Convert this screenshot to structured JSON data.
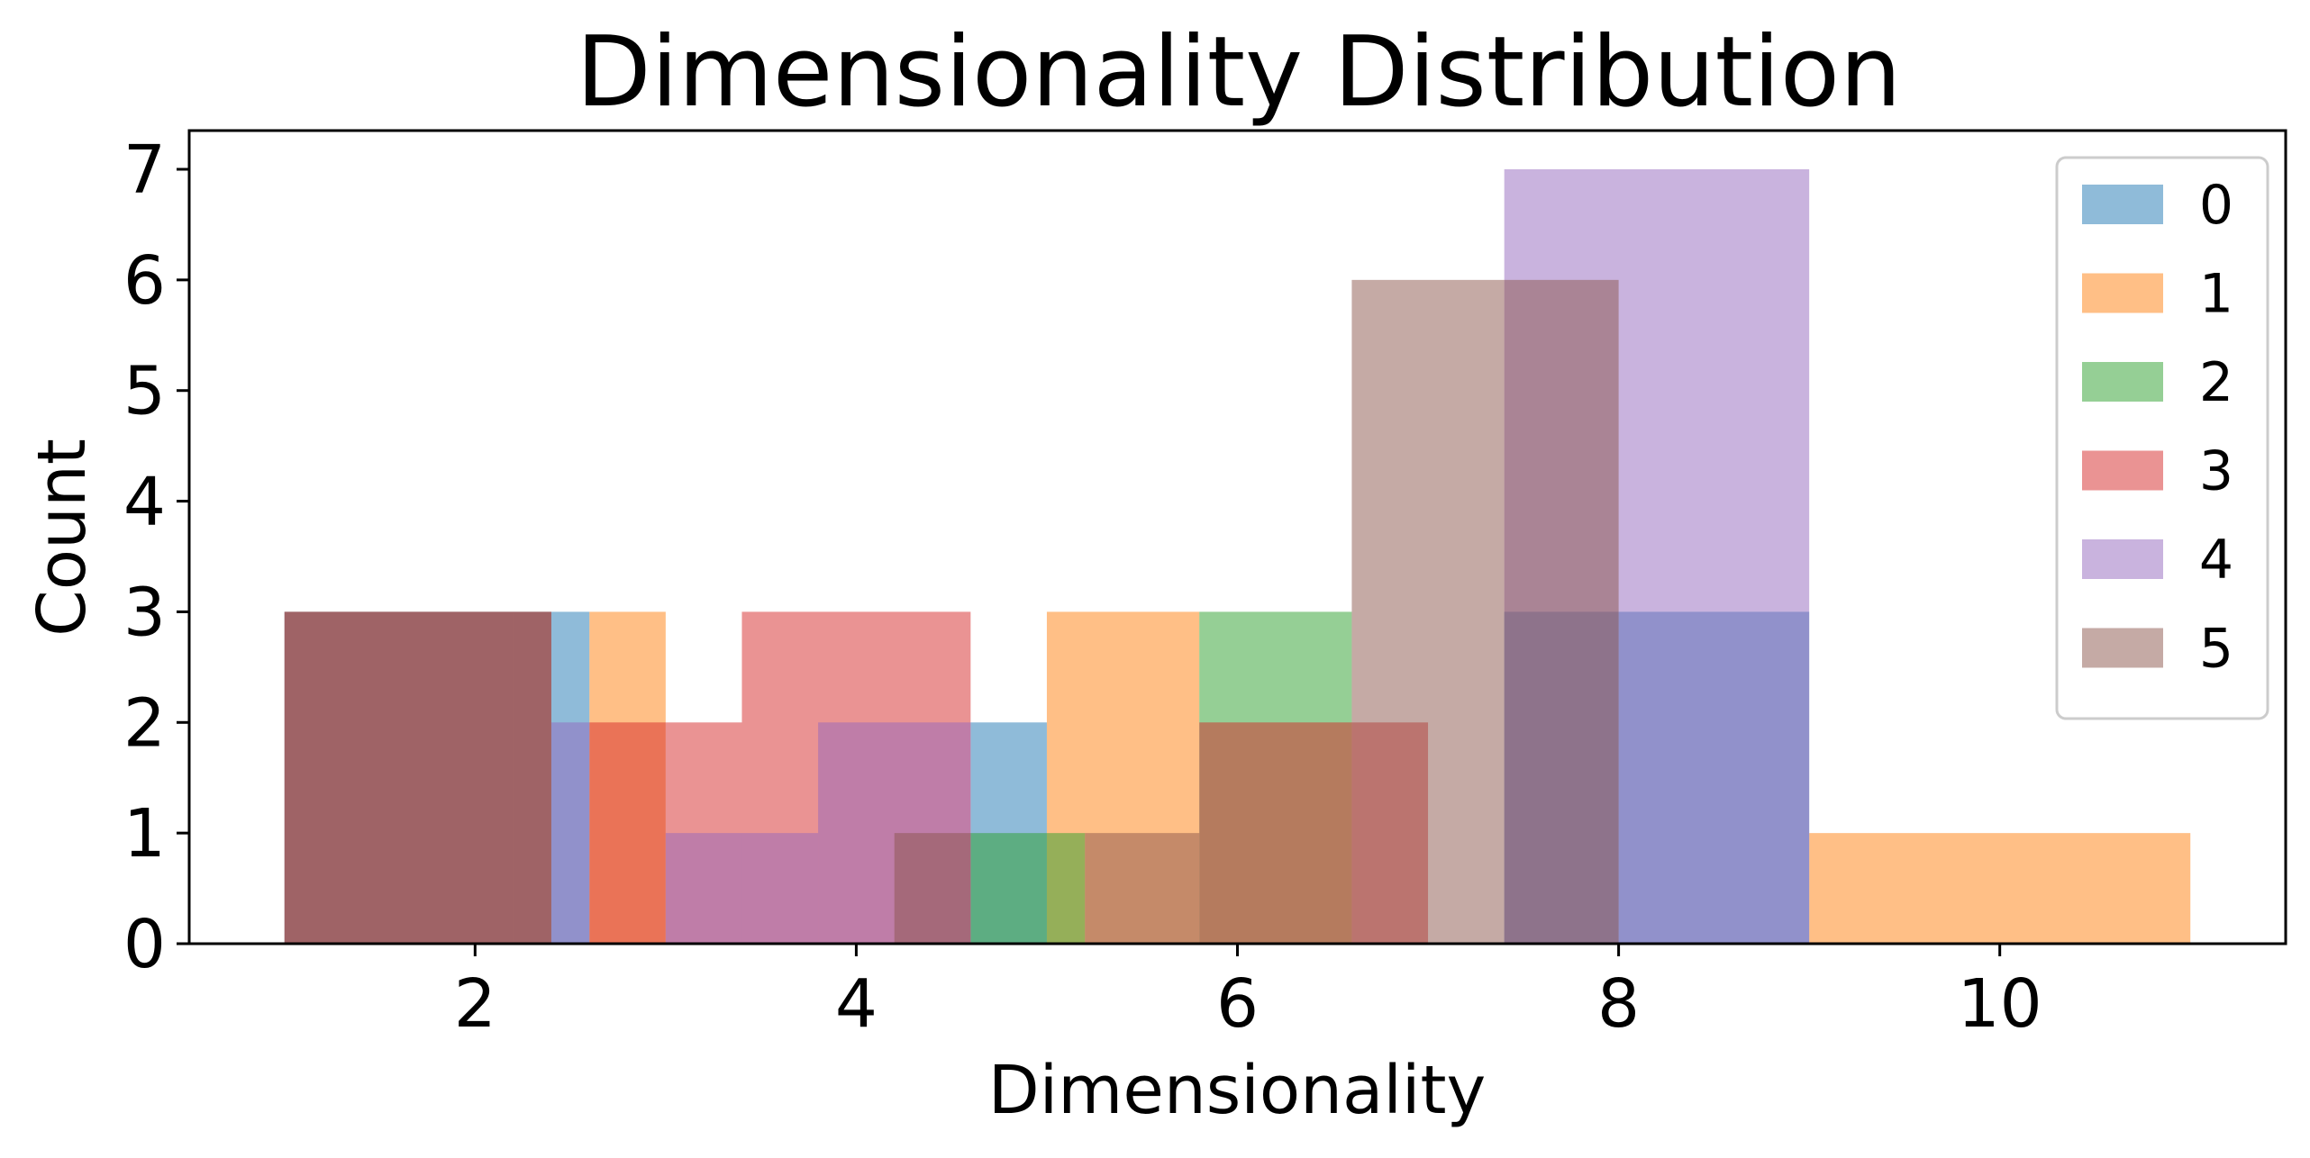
{
  "chart_data": {
    "type": "bar",
    "title": "Dimensionality Distribution",
    "xlabel": "Dimensionality",
    "ylabel": "Count",
    "xlim": [
      0.5,
      11.5
    ],
    "ylim": [
      0,
      7.35
    ],
    "x_ticks": [
      "2",
      "4",
      "6",
      "8",
      "10"
    ],
    "x_tick_values": [
      2,
      4,
      6,
      8,
      10
    ],
    "y_ticks": [
      "0",
      "1",
      "2",
      "3",
      "4",
      "5",
      "6",
      "7"
    ],
    "y_tick_values": [
      0,
      1,
      2,
      3,
      4,
      5,
      6,
      7
    ],
    "grid": false,
    "legend_position": "top-right",
    "bar_alpha": 0.5,
    "series": [
      {
        "name": "0",
        "color": "#1f77b4",
        "bins": [
          [
            1.0,
            2.4,
            3
          ],
          [
            2.4,
            2.6,
            3
          ],
          [
            4.6,
            5.0,
            2
          ],
          [
            7.4,
            8.0,
            3
          ],
          [
            8.0,
            9.0,
            3
          ]
        ]
      },
      {
        "name": "1",
        "color": "#ff7f0e",
        "bins": [
          [
            2.6,
            3.0,
            3
          ],
          [
            5.0,
            5.8,
            3
          ],
          [
            9.0,
            11.0,
            1
          ]
        ]
      },
      {
        "name": "2",
        "color": "#2ca02c",
        "bins": [
          [
            4.6,
            5.0,
            1
          ],
          [
            5.0,
            5.2,
            1
          ],
          [
            5.8,
            6.6,
            3
          ]
        ]
      },
      {
        "name": "3",
        "color": "#d62728",
        "bins": [
          [
            1.0,
            2.4,
            3
          ],
          [
            2.6,
            3.0,
            2
          ],
          [
            3.0,
            3.4,
            2
          ],
          [
            3.4,
            4.6,
            3
          ],
          [
            5.8,
            7.0,
            2
          ]
        ]
      },
      {
        "name": "4",
        "color": "#9467bd",
        "bins": [
          [
            2.4,
            2.6,
            2
          ],
          [
            3.0,
            3.8,
            1
          ],
          [
            3.8,
            4.6,
            2
          ],
          [
            7.4,
            9.0,
            7
          ]
        ]
      },
      {
        "name": "5",
        "color": "#8c564b",
        "bins": [
          [
            1.0,
            2.2,
            3
          ],
          [
            2.2,
            2.4,
            3
          ],
          [
            4.2,
            4.6,
            1
          ],
          [
            5.2,
            5.8,
            1
          ],
          [
            6.6,
            7.4,
            6
          ],
          [
            7.4,
            8.0,
            6
          ]
        ]
      }
    ]
  }
}
